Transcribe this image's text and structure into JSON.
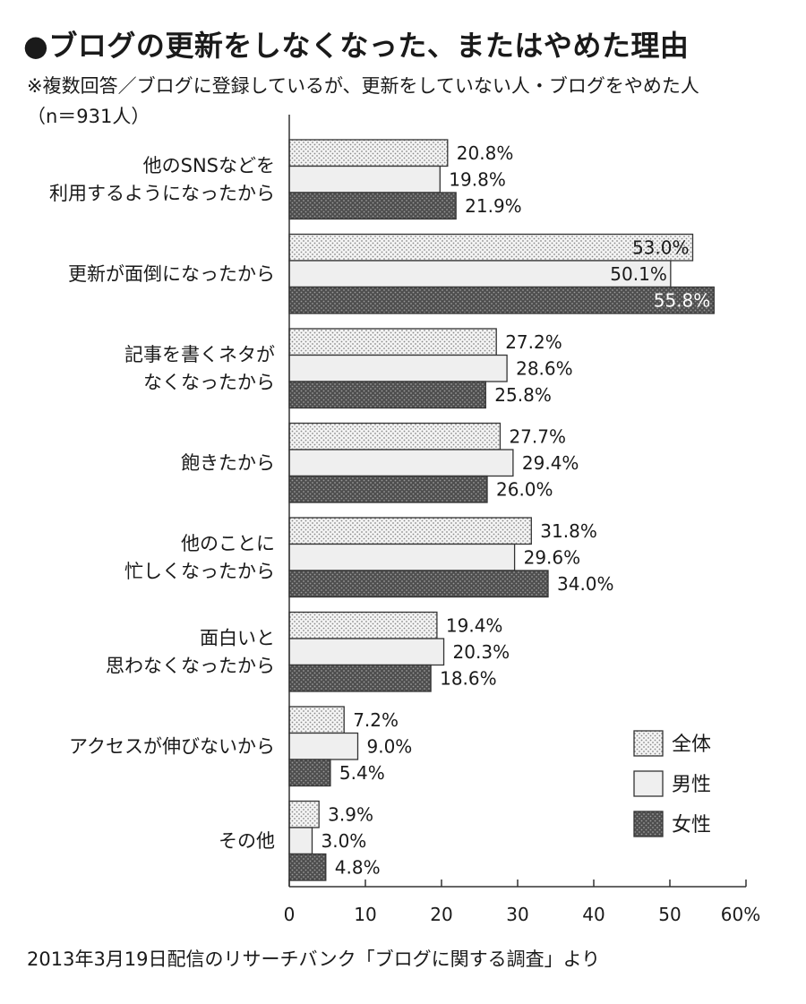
{
  "title": "●ブログの更新をしなくなった、またはやめた理由",
  "subtitle": "※複数回答／ブログに登録しているが、更新をしていない人・ブログをやめた人",
  "sample": "（n＝931人）",
  "source": "2013年3月19日配信のリサーチバンク「ブログに関する調査」より",
  "chart_data": {
    "type": "bar",
    "orientation": "horizontal",
    "categories": [
      [
        "他のSNSなどを",
        "利用するようになったから"
      ],
      [
        "更新が面倒になったから"
      ],
      [
        "記事を書くネタが",
        "なくなったから"
      ],
      [
        "飽きたから"
      ],
      [
        "他のことに",
        "忙しくなったから"
      ],
      [
        "面白いと",
        "思わなくなったから"
      ],
      [
        "アクセスが伸びないから"
      ],
      [
        "その他"
      ]
    ],
    "series": [
      {
        "name": "全体",
        "values": [
          20.8,
          53.0,
          27.2,
          27.7,
          31.8,
          19.4,
          7.2,
          3.9
        ],
        "labels": [
          "20.8%",
          "53.0%",
          "27.2%",
          "27.7%",
          "31.8%",
          "19.4%",
          "7.2%",
          "3.9%"
        ],
        "fill": "dotted-light"
      },
      {
        "name": "男性",
        "values": [
          19.8,
          50.1,
          28.6,
          29.4,
          29.6,
          20.3,
          9.0,
          3.0
        ],
        "labels": [
          "19.8%",
          "50.1%",
          "28.6%",
          "29.4%",
          "29.6%",
          "20.3%",
          "9.0%",
          "3.0%"
        ],
        "fill": "#efefef"
      },
      {
        "name": "女性",
        "values": [
          21.9,
          55.8,
          25.8,
          26.0,
          34.0,
          18.6,
          5.4,
          4.8
        ],
        "labels": [
          "21.9%",
          "55.8%",
          "25.8%",
          "26.0%",
          "34.0%",
          "18.6%",
          "5.4%",
          "4.8%"
        ],
        "fill": "dotted-dark"
      }
    ],
    "xlim": [
      0,
      60
    ],
    "xticks": [
      "0",
      "10",
      "20",
      "30",
      "40",
      "50",
      "60%"
    ],
    "legend_position": "bottom-right",
    "grid": false
  }
}
